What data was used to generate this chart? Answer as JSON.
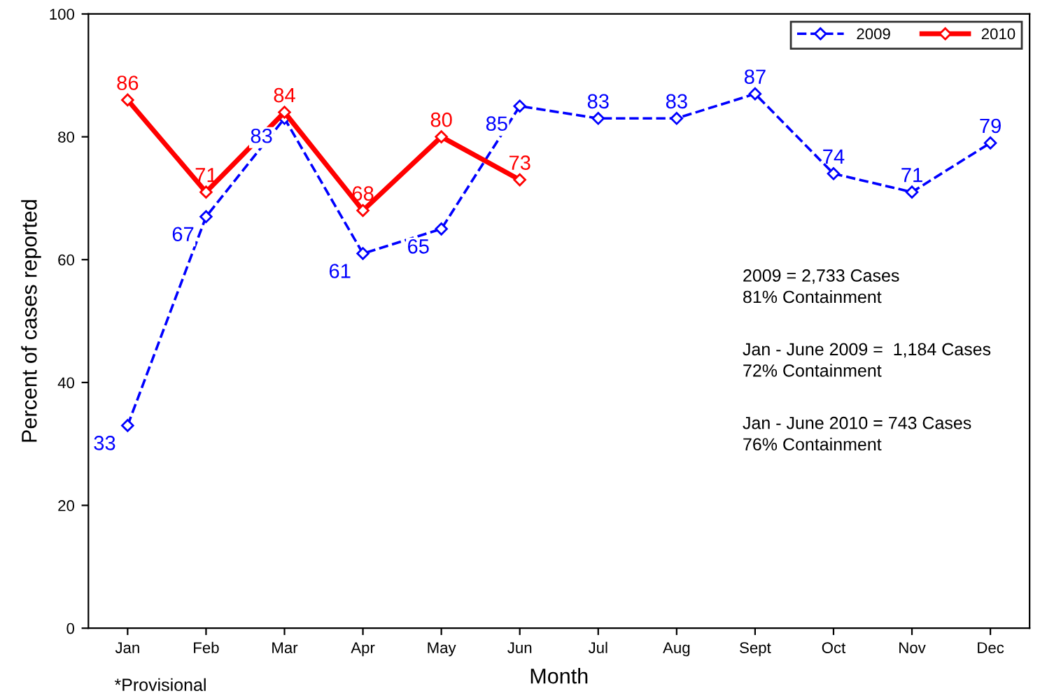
{
  "chart_data": {
    "type": "line",
    "xlabel": "Month",
    "ylabel": "Percent of cases reported",
    "categories": [
      "Jan",
      "Feb",
      "Mar",
      "Apr",
      "May",
      "Jun",
      "Jul",
      "Aug",
      "Sept",
      "Oct",
      "Nov",
      "Dec"
    ],
    "series": [
      {
        "name": "2009",
        "color": "#0000ff",
        "line_style": "dashed",
        "values": [
          33,
          67,
          83,
          61,
          65,
          85,
          83,
          83,
          87,
          74,
          71,
          79
        ]
      },
      {
        "name": "2010",
        "color": "#ff0000",
        "line_style": "solid",
        "values": [
          86,
          71,
          84,
          68,
          80,
          73,
          null,
          null,
          null,
          null,
          null,
          null
        ]
      }
    ],
    "marker": "diamond",
    "data_labels": true,
    "legend": "top right",
    "grid": false,
    "ylim": [
      0,
      100
    ],
    "yticks": [
      0,
      20,
      40,
      60,
      80,
      100
    ],
    "annotations": [
      "2009 = 2,733 Cases\n81% Containment",
      "Jan - June 2009 =  1,184 Cases\n72% Containment",
      "Jan - June 2010 = 743 Cases\n76% Containment",
      "*Provisional"
    ]
  }
}
